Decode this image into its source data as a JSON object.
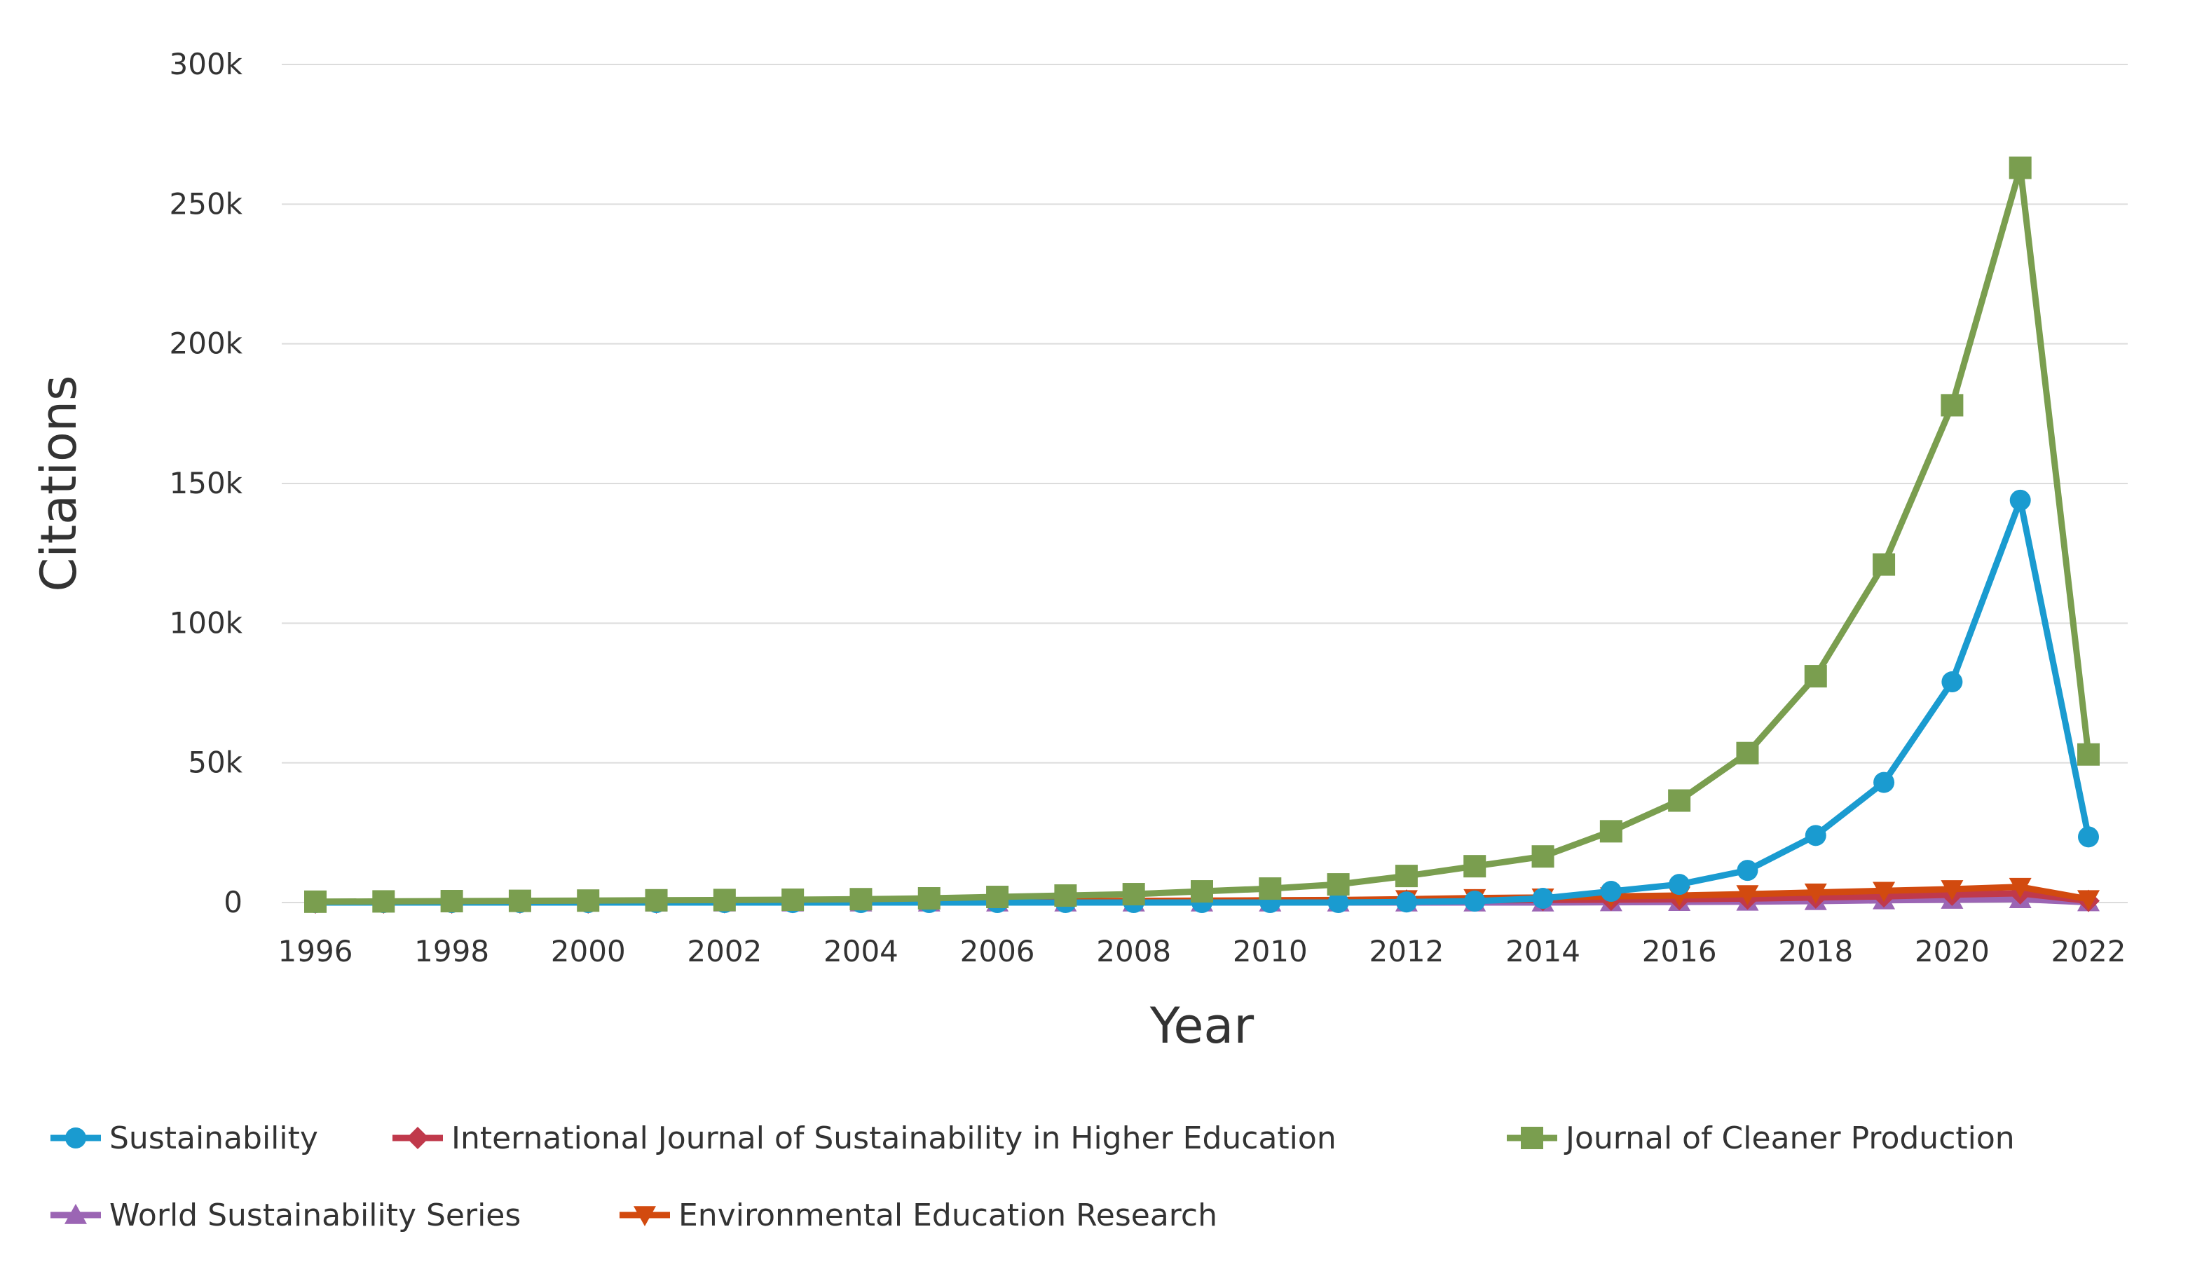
{
  "chart_data": {
    "type": "line",
    "title": "",
    "xlabel": "Year",
    "ylabel": "Citations",
    "x": [
      1996,
      1997,
      1998,
      1999,
      2000,
      2001,
      2002,
      2003,
      2004,
      2005,
      2006,
      2007,
      2008,
      2009,
      2010,
      2011,
      2012,
      2013,
      2014,
      2015,
      2016,
      2017,
      2018,
      2019,
      2020,
      2021,
      2022
    ],
    "x_ticks": [
      "1996",
      "1998",
      "2000",
      "2002",
      "2004",
      "2006",
      "2008",
      "2010",
      "2012",
      "2014",
      "2016",
      "2018",
      "2020",
      "2022"
    ],
    "y_ticks": [
      {
        "value": 0,
        "label": "0"
      },
      {
        "value": 50000,
        "label": "50k"
      },
      {
        "value": 100000,
        "label": "100k"
      },
      {
        "value": 150000,
        "label": "150k"
      },
      {
        "value": 200000,
        "label": "200k"
      },
      {
        "value": 250000,
        "label": "250k"
      },
      {
        "value": 300000,
        "label": "300k"
      }
    ],
    "ylim": [
      0,
      300000
    ],
    "grid": true,
    "legend_position": "bottom",
    "series": [
      {
        "name": "Sustainability",
        "color": "#1a9bd0",
        "marker": "circle",
        "values": [
          0,
          0,
          0,
          0,
          0,
          0,
          0,
          0,
          0,
          0,
          0,
          0,
          0,
          0,
          0,
          0,
          200,
          500,
          1500,
          4000,
          6500,
          11500,
          24000,
          43000,
          79000,
          144000,
          23500
        ]
      },
      {
        "name": "International Journal of Sustainability in Higher Education",
        "color": "#c0394b",
        "marker": "diamond",
        "values": [
          0,
          0,
          0,
          0,
          0,
          0,
          100,
          150,
          200,
          250,
          300,
          350,
          400,
          450,
          500,
          600,
          700,
          800,
          900,
          1000,
          1200,
          1400,
          1800,
          2200,
          2800,
          3300,
          600
        ]
      },
      {
        "name": "Journal of Cleaner Production",
        "color": "#7a9e4f",
        "marker": "square",
        "values": [
          300,
          400,
          500,
          600,
          700,
          800,
          900,
          1000,
          1200,
          1500,
          2000,
          2500,
          3000,
          4000,
          5000,
          6500,
          9500,
          13000,
          16500,
          25500,
          36500,
          53500,
          81000,
          121000,
          178000,
          263000,
          53000
        ]
      },
      {
        "name": "World Sustainability Series",
        "color": "#9b65b4",
        "marker": "triangle-up",
        "values": [
          0,
          0,
          0,
          0,
          0,
          0,
          0,
          0,
          0,
          0,
          0,
          0,
          0,
          0,
          0,
          0,
          0,
          0,
          0,
          100,
          200,
          300,
          500,
          800,
          1000,
          1200,
          100
        ]
      },
      {
        "name": "Environmental Education Research",
        "color": "#d24a0f",
        "marker": "triangle-down",
        "values": [
          200,
          200,
          200,
          200,
          250,
          250,
          300,
          300,
          350,
          400,
          450,
          500,
          600,
          700,
          800,
          900,
          1200,
          1600,
          1800,
          2200,
          2500,
          3000,
          3600,
          4200,
          4800,
          5600,
          1200
        ]
      }
    ]
  }
}
